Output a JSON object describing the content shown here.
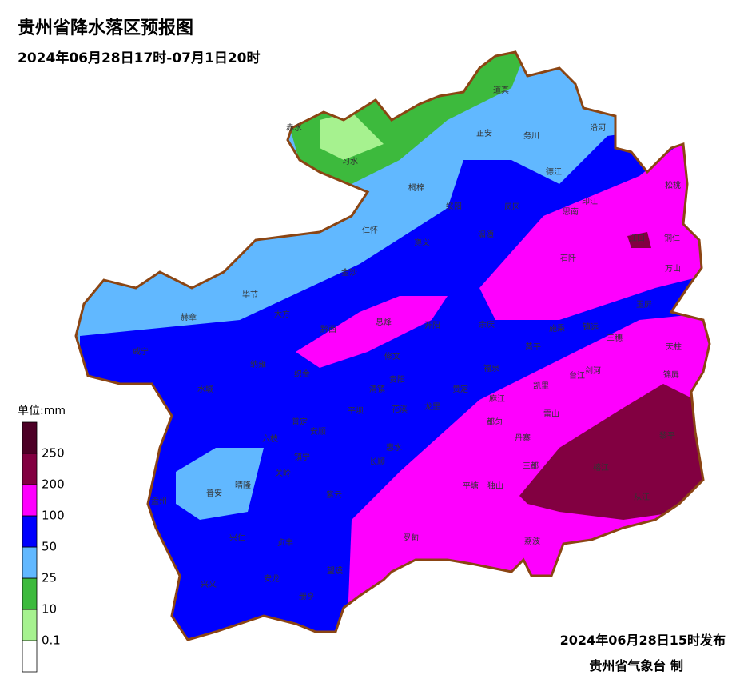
{
  "header": {
    "title": "贵州省降水落区预报图",
    "subtitle": "2024年06月28日17时-07月1日20时"
  },
  "legend": {
    "unit": "单位:mm",
    "labels": [
      "0.1",
      "10",
      "25",
      "50",
      "100",
      "200",
      "250"
    ],
    "colors": [
      "#ffffff",
      "#a6f28f",
      "#3dba3d",
      "#61b8ff",
      "#0000fe",
      "#fe00fe",
      "#820041",
      "#4d0026"
    ]
  },
  "places": [
    "赤水",
    "习水",
    "道真",
    "正安",
    "务川",
    "沿河",
    "桐梓",
    "绥阳",
    "凤冈",
    "德江",
    "思南",
    "印江",
    "松桃",
    "仁怀",
    "遵义",
    "湄潭",
    "江口",
    "铜仁",
    "石阡",
    "万山",
    "金沙",
    "毕节",
    "赫章",
    "大方",
    "黔西",
    "息烽",
    "开阳",
    "余庆",
    "施秉",
    "镇远",
    "玉屏",
    "威宁",
    "纳雍",
    "织金",
    "修文",
    "黄平",
    "三穗",
    "天柱",
    "福泉",
    "台江",
    "剑河",
    "锦屏",
    "水城",
    "清镇",
    "贵阳",
    "贵定",
    "凯里",
    "麻江",
    "龙里",
    "平坝",
    "花溪",
    "雷山",
    "六枝",
    "普定",
    "安顺",
    "都匀",
    "丹寨",
    "黎平",
    "惠水",
    "长顺",
    "三都",
    "榕江",
    "镇宁",
    "关岭",
    "平塘",
    "独山",
    "盘州",
    "普安",
    "晴隆",
    "紫云",
    "从江",
    "兴仁",
    "贞丰",
    "罗甸",
    "荔波",
    "望谟",
    "兴义",
    "安龙",
    "册亨"
  ],
  "footer": {
    "issued": "2024年06月28日15时发布",
    "agency": "贵州省气象台 制"
  }
}
